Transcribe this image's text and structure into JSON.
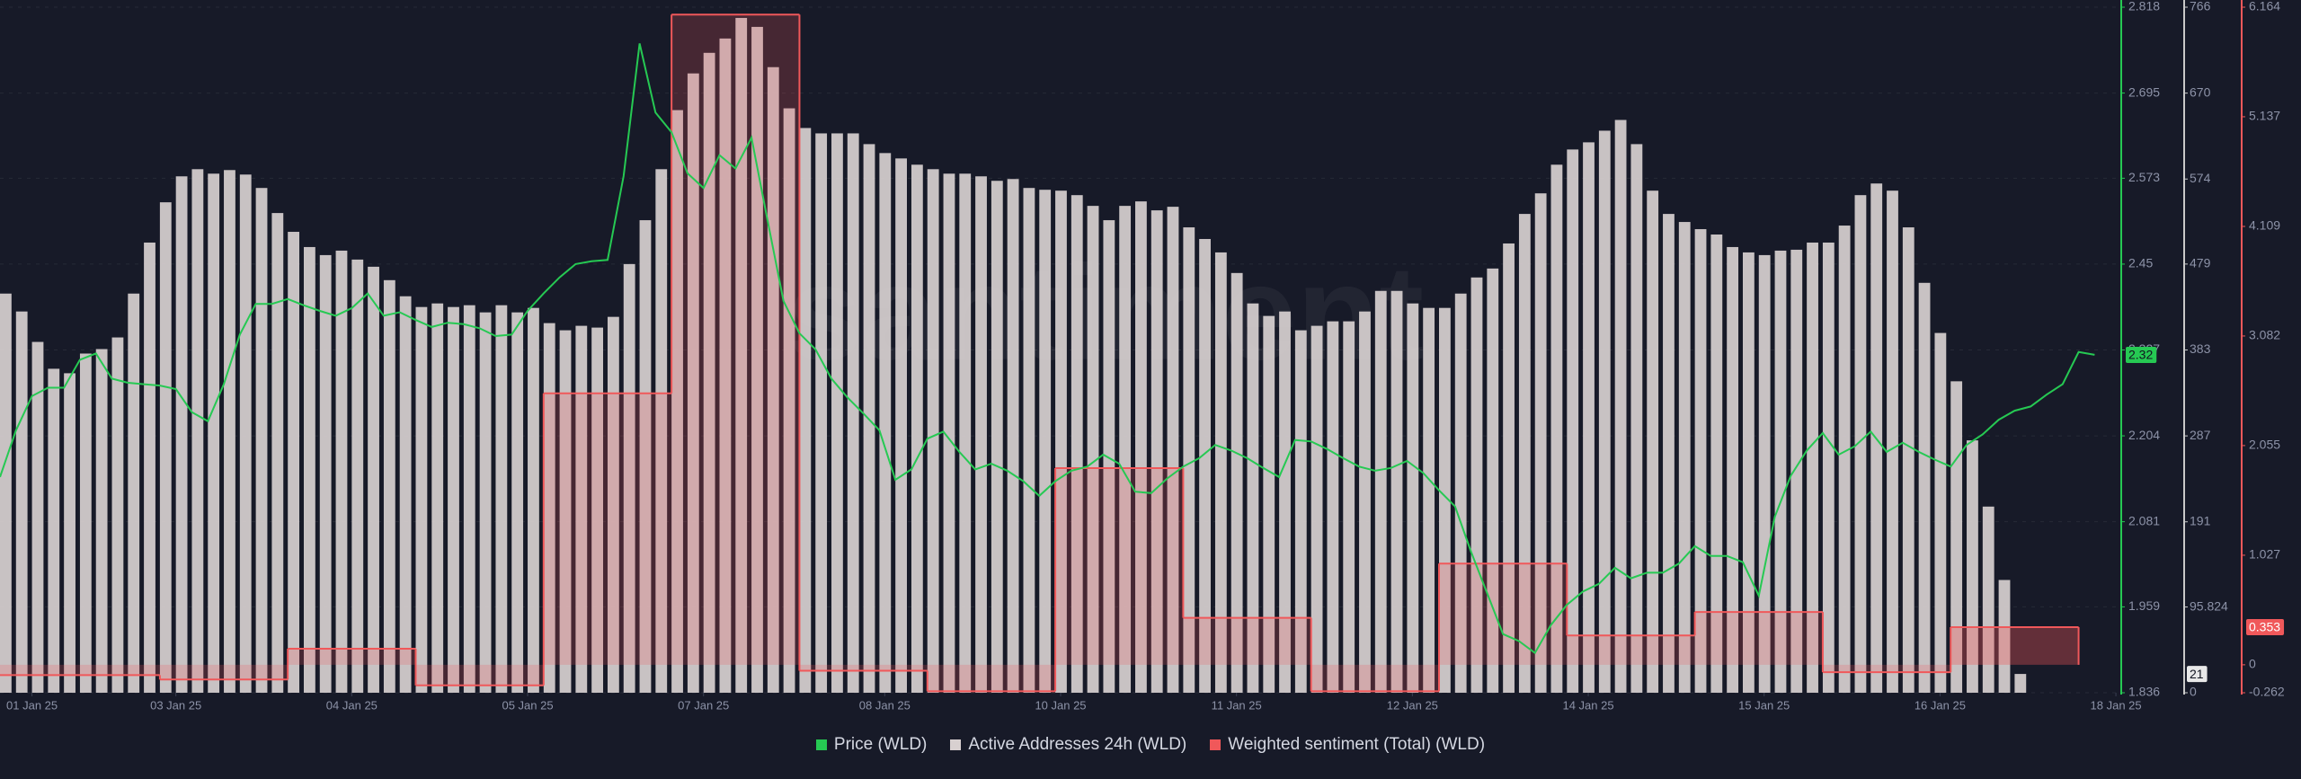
{
  "chart_data": {
    "type": "combo",
    "watermark": "santiment",
    "xlim": [
      0,
      398
    ],
    "xticks": [
      {
        "value": 6,
        "label": "01 Jan 25"
      },
      {
        "value": 33,
        "label": "03 Jan 25"
      },
      {
        "value": 66,
        "label": "04 Jan 25"
      },
      {
        "value": 99,
        "label": "05 Jan 25"
      },
      {
        "value": 132,
        "label": "07 Jan 25"
      },
      {
        "value": 166,
        "label": "08 Jan 25"
      },
      {
        "value": 199,
        "label": "10 Jan 25"
      },
      {
        "value": 232,
        "label": "11 Jan 25"
      },
      {
        "value": 265,
        "label": "12 Jan 25"
      },
      {
        "value": 298,
        "label": "14 Jan 25"
      },
      {
        "value": 331,
        "label": "15 Jan 25"
      },
      {
        "value": 364,
        "label": "16 Jan 25"
      },
      {
        "value": 397,
        "label": "18 Jan 25"
      }
    ],
    "ylim": [
      1.836,
      2.818
    ],
    "yticks": [
      1.836,
      1.959,
      2.081,
      2.204,
      2.327,
      2.45,
      2.573,
      2.695,
      2.818
    ],
    "y2lim": [
      0,
      766
    ],
    "y2ticks": [
      0,
      95.824,
      191,
      287,
      383,
      479,
      574,
      670,
      766
    ],
    "y3lim": [
      -0.262,
      6.164
    ],
    "y3ticks": [
      -0.262,
      0,
      1.027,
      2.055,
      3.082,
      4.109,
      5.137,
      6.164
    ],
    "grid": true,
    "series": [
      {
        "name": "Price (WLD)",
        "type": "line",
        "color": "#26c953",
        "axis": "y",
        "x": [
          0,
          3,
          6,
          9,
          12,
          15,
          18,
          21,
          24,
          27,
          30,
          33,
          36,
          39,
          42,
          45,
          48,
          51,
          54,
          57,
          60,
          63,
          66,
          69,
          72,
          75,
          78,
          81,
          84,
          87,
          90,
          93,
          96,
          99,
          102,
          105,
          108,
          111,
          114,
          117,
          120,
          123,
          126,
          129,
          132,
          135,
          138,
          141,
          144,
          147,
          150,
          153,
          156,
          159,
          162,
          165,
          168,
          171,
          174,
          177,
          180,
          183,
          186,
          189,
          192,
          195,
          198,
          201,
          204,
          207,
          210,
          213,
          216,
          219,
          222,
          225,
          228,
          231,
          234,
          237,
          240,
          243,
          246,
          249,
          252,
          255,
          258,
          261,
          264,
          267,
          270,
          273,
          276,
          279,
          282,
          285,
          288,
          291,
          294,
          297,
          300,
          303,
          306,
          309,
          312,
          315,
          318,
          321,
          324,
          327,
          330,
          333,
          336,
          339,
          342,
          345,
          348,
          351,
          354,
          357,
          360,
          363,
          366,
          369,
          372,
          375,
          378,
          381,
          384,
          387,
          390,
          393
        ],
        "values": [
          2.145,
          2.212,
          2.261,
          2.273,
          2.273,
          2.313,
          2.322,
          2.286,
          2.28,
          2.278,
          2.276,
          2.271,
          2.238,
          2.225,
          2.278,
          2.349,
          2.393,
          2.393,
          2.4,
          2.391,
          2.383,
          2.376,
          2.387,
          2.408,
          2.376,
          2.381,
          2.37,
          2.36,
          2.366,
          2.364,
          2.358,
          2.347,
          2.349,
          2.383,
          2.408,
          2.431,
          2.45,
          2.454,
          2.456,
          2.576,
          2.766,
          2.667,
          2.639,
          2.58,
          2.559,
          2.606,
          2.587,
          2.631,
          2.513,
          2.397,
          2.351,
          2.328,
          2.286,
          2.259,
          2.236,
          2.212,
          2.141,
          2.156,
          2.2,
          2.21,
          2.181,
          2.156,
          2.164,
          2.154,
          2.139,
          2.118,
          2.139,
          2.154,
          2.16,
          2.177,
          2.164,
          2.124,
          2.122,
          2.143,
          2.16,
          2.172,
          2.191,
          2.183,
          2.172,
          2.158,
          2.145,
          2.198,
          2.196,
          2.185,
          2.172,
          2.16,
          2.154,
          2.158,
          2.168,
          2.151,
          2.126,
          2.103,
          2.038,
          1.979,
          1.92,
          1.91,
          1.893,
          1.933,
          1.962,
          1.981,
          1.992,
          2.015,
          2.0,
          2.008,
          2.008,
          2.021,
          2.046,
          2.032,
          2.032,
          2.023,
          1.975,
          2.088,
          2.147,
          2.183,
          2.208,
          2.177,
          2.189,
          2.21,
          2.181,
          2.194,
          2.181,
          2.17,
          2.16,
          2.191,
          2.206,
          2.227,
          2.24,
          2.246,
          2.263,
          2.278,
          2.324,
          2.32
        ]
      },
      {
        "name": "Active Addresses 24h (WLD)",
        "type": "bar",
        "color": "#d8d0d0",
        "axis": "y2",
        "x": [
          0,
          3,
          6,
          9,
          12,
          15,
          18,
          21,
          24,
          27,
          30,
          33,
          36,
          39,
          42,
          45,
          48,
          51,
          54,
          57,
          60,
          63,
          66,
          69,
          72,
          75,
          78,
          81,
          84,
          87,
          90,
          93,
          96,
          99,
          102,
          105,
          108,
          111,
          114,
          117,
          120,
          123,
          126,
          129,
          132,
          135,
          138,
          141,
          144,
          147,
          150,
          153,
          156,
          159,
          162,
          165,
          168,
          171,
          174,
          177,
          180,
          183,
          186,
          189,
          192,
          195,
          198,
          201,
          204,
          207,
          210,
          213,
          216,
          219,
          222,
          225,
          228,
          231,
          234,
          237,
          240,
          243,
          246,
          249,
          252,
          255,
          258,
          261,
          264,
          267,
          270,
          273,
          276,
          279,
          282,
          285,
          288,
          291,
          294,
          297,
          300,
          303,
          306,
          309,
          312,
          315,
          318,
          321,
          324,
          327,
          330,
          333,
          336,
          339,
          342,
          345,
          348,
          351,
          354,
          357,
          360,
          363,
          366,
          369,
          372,
          375,
          378
        ],
        "values": [
          446,
          426,
          392,
          362,
          357,
          379,
          384,
          397,
          446,
          503,
          548,
          577,
          585,
          580,
          584,
          579,
          564,
          536,
          515,
          498,
          489,
          494,
          484,
          476,
          461,
          443,
          431,
          435,
          431,
          433,
          425,
          433,
          425,
          430,
          413,
          405,
          410,
          408,
          420,
          479,
          528,
          585,
          651,
          692,
          715,
          731,
          754,
          744,
          699,
          653,
          631,
          625,
          625,
          625,
          613,
          603,
          597,
          590,
          585,
          580,
          580,
          577,
          572,
          574,
          564,
          562,
          561,
          556,
          544,
          528,
          544,
          549,
          539,
          543,
          520,
          507,
          492,
          469,
          435,
          421,
          426,
          405,
          410,
          415,
          415,
          426,
          449,
          449,
          435,
          430,
          430,
          446,
          464,
          474,
          502,
          535,
          558,
          590,
          607,
          615,
          628,
          640,
          613,
          561,
          535,
          526,
          518,
          512,
          498,
          492,
          489,
          494,
          495,
          503,
          503,
          522,
          556,
          569,
          561,
          520,
          458,
          402,
          348,
          282,
          208,
          126,
          21
        ]
      },
      {
        "name": "Weighted sentiment (Total) (WLD)",
        "type": "step",
        "color": "#f0585a",
        "axis": "y3",
        "edges": [
          0,
          30,
          54,
          78,
          102,
          126,
          150,
          174,
          198,
          222,
          246,
          270,
          294,
          318,
          342,
          366,
          390
        ],
        "values": [
          -0.097,
          -0.138,
          0.151,
          -0.193,
          2.545,
          6.095,
          -0.056,
          -0.248,
          1.843,
          0.44,
          -0.248,
          0.949,
          0.275,
          0.495,
          -0.069,
          0.353
        ]
      }
    ]
  }
}
